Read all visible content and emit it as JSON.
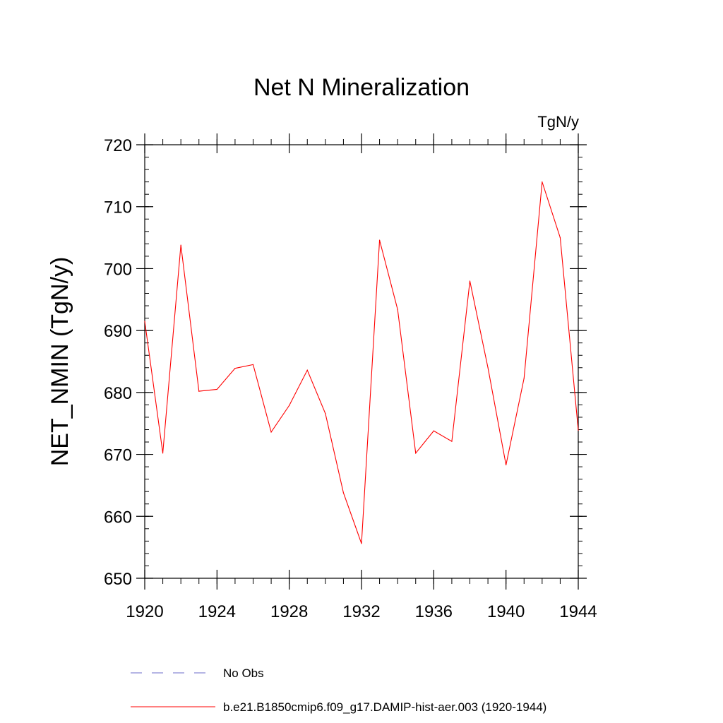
{
  "chart_data": {
    "type": "line",
    "title": "Net N Mineralization",
    "units_label": "TgN/y",
    "xlabel": "",
    "ylabel": "NET_NMIN  (TgN/y)",
    "xlim": [
      1920,
      1944
    ],
    "ylim": [
      650,
      720
    ],
    "xticks": [
      1920,
      1924,
      1928,
      1932,
      1936,
      1940,
      1944
    ],
    "yticks": [
      650,
      660,
      670,
      680,
      690,
      700,
      710,
      720
    ],
    "grid": false,
    "legend_position": "bottom",
    "series": [
      {
        "name": "b.e21.B1850cmip6.f09_g17.DAMIP-hist-aer.003 (1920-1944)",
        "color": "#ff0000",
        "style": "solid",
        "x": [
          1920,
          1921,
          1922,
          1923,
          1924,
          1925,
          1926,
          1927,
          1928,
          1929,
          1930,
          1931,
          1932,
          1933,
          1934,
          1935,
          1936,
          1937,
          1938,
          1939,
          1940,
          1941,
          1942,
          1943,
          1944
        ],
        "y": [
          691.5,
          670.2,
          703.8,
          680.2,
          680.5,
          683.9,
          684.5,
          673.6,
          677.9,
          683.6,
          676.6,
          663.8,
          655.6,
          704.6,
          693.4,
          670.2,
          673.8,
          672.1,
          698.0,
          684.0,
          668.3,
          682.3,
          714.0,
          705.0,
          673.9
        ]
      }
    ],
    "legend": [
      {
        "label": "No Obs",
        "color": "#6b6bc8",
        "style": "dashed"
      },
      {
        "label": "b.e21.B1850cmip6.f09_g17.DAMIP-hist-aer.003 (1920-1944)",
        "color": "#ff0000",
        "style": "solid"
      }
    ]
  }
}
